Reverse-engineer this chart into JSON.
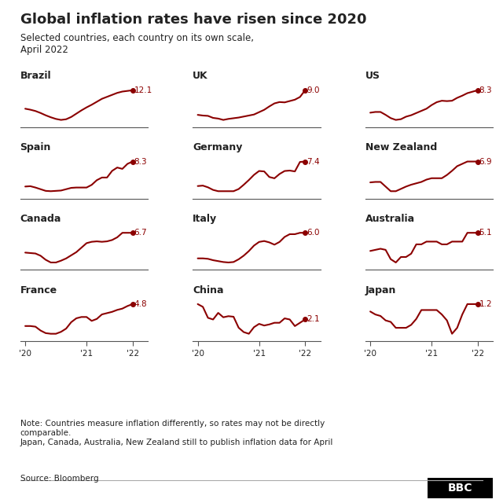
{
  "title": "Global inflation rates have risen since 2020",
  "subtitle": "Selected countries, each country on its own scale,\nApril 2022",
  "note": "Note: Countries measure inflation differently, so rates may not be directly\ncomparable.\nJapan, Canada, Australia, New Zealand still to publish inflation data for April",
  "source": "Source: Bloomberg",
  "line_color": "#8B0000",
  "bg_color": "#ffffff",
  "text_color": "#222222",
  "countries": [
    {
      "name": "Brazil",
      "final_value": "12.1",
      "row": 0,
      "col": 0,
      "data": [
        6.5,
        6.2,
        5.8,
        5.2,
        4.5,
        3.9,
        3.4,
        3.1,
        3.3,
        4.0,
        5.0,
        6.0,
        6.9,
        7.7,
        8.6,
        9.5,
        10.1,
        10.7,
        11.3,
        11.7,
        11.9,
        12.1
      ]
    },
    {
      "name": "UK",
      "final_value": "9.0",
      "row": 0,
      "col": 1,
      "data": [
        1.7,
        1.5,
        1.4,
        0.8,
        0.6,
        0.2,
        0.5,
        0.7,
        0.9,
        1.2,
        1.5,
        1.8,
        2.5,
        3.2,
        4.2,
        5.1,
        5.5,
        5.4,
        5.8,
        6.2,
        7.0,
        9.0
      ]
    },
    {
      "name": "US",
      "final_value": "8.3",
      "row": 0,
      "col": 2,
      "data": [
        2.1,
        2.3,
        2.3,
        1.5,
        0.6,
        0.1,
        0.3,
        1.0,
        1.4,
        2.0,
        2.6,
        3.2,
        4.2,
        5.0,
        5.4,
        5.3,
        5.4,
        6.2,
        6.8,
        7.5,
        7.9,
        8.3
      ]
    },
    {
      "name": "Spain",
      "final_value": "8.3",
      "row": 1,
      "col": 0,
      "data": [
        0.8,
        0.9,
        0.5,
        0.0,
        -0.5,
        -0.6,
        -0.5,
        -0.4,
        0.0,
        0.4,
        0.5,
        0.5,
        0.5,
        1.3,
        2.7,
        3.5,
        3.5,
        5.5,
        6.5,
        6.1,
        7.6,
        8.3
      ]
    },
    {
      "name": "Germany",
      "final_value": "7.4",
      "row": 1,
      "col": 1,
      "data": [
        1.7,
        1.8,
        1.4,
        0.8,
        0.5,
        0.5,
        0.5,
        0.5,
        1.0,
        2.0,
        3.1,
        4.3,
        5.2,
        5.1,
        3.8,
        3.5,
        4.5,
        5.2,
        5.3,
        5.1,
        7.3,
        7.4
      ]
    },
    {
      "name": "New Zealand",
      "final_value": "6.9",
      "row": 1,
      "col": 2,
      "data": [
        2.4,
        2.5,
        2.5,
        1.5,
        0.5,
        0.5,
        1.0,
        1.5,
        1.9,
        2.2,
        2.5,
        3.0,
        3.3,
        3.3,
        3.3,
        4.0,
        4.9,
        5.9,
        6.4,
        6.9,
        6.9,
        6.9
      ]
    },
    {
      "name": "Canada",
      "final_value": "6.7",
      "row": 2,
      "col": 0,
      "data": [
        2.3,
        2.2,
        2.1,
        1.6,
        0.7,
        0.1,
        0.1,
        0.5,
        1.0,
        1.7,
        2.4,
        3.4,
        4.4,
        4.7,
        4.8,
        4.7,
        4.8,
        5.1,
        5.7,
        6.7,
        6.7,
        6.7
      ]
    },
    {
      "name": "Italy",
      "final_value": "6.0",
      "row": 2,
      "col": 1,
      "data": [
        0.4,
        0.4,
        0.3,
        0.0,
        -0.2,
        -0.4,
        -0.5,
        -0.4,
        0.2,
        1.0,
        2.0,
        3.2,
        4.0,
        4.2,
        3.9,
        3.4,
        4.0,
        5.1,
        5.7,
        5.7,
        6.0,
        6.0
      ]
    },
    {
      "name": "Australia",
      "final_value": "5.1",
      "row": 2,
      "col": 2,
      "data": [
        1.8,
        2.0,
        2.2,
        2.0,
        0.3,
        -0.3,
        0.7,
        0.7,
        1.3,
        3.0,
        3.0,
        3.5,
        3.5,
        3.5,
        3.0,
        3.0,
        3.5,
        3.5,
        3.5,
        5.1,
        5.1,
        5.1
      ]
    },
    {
      "name": "France",
      "final_value": "4.8",
      "row": 3,
      "col": 0,
      "data": [
        1.4,
        1.4,
        1.3,
        0.7,
        0.3,
        0.2,
        0.2,
        0.5,
        1.0,
        2.0,
        2.6,
        2.8,
        2.8,
        2.2,
        2.5,
        3.2,
        3.4,
        3.6,
        3.9,
        4.1,
        4.5,
        4.8
      ]
    },
    {
      "name": "China",
      "final_value": "2.1",
      "row": 3,
      "col": 1,
      "data": [
        4.9,
        4.4,
        2.4,
        2.1,
        3.3,
        2.5,
        2.7,
        2.6,
        0.6,
        -0.2,
        -0.5,
        0.7,
        1.3,
        1.0,
        1.2,
        1.5,
        1.5,
        2.3,
        2.1,
        0.9,
        1.5,
        2.1
      ]
    },
    {
      "name": "Japan",
      "final_value": "1.2",
      "row": 3,
      "col": 2,
      "data": [
        0.7,
        0.5,
        0.4,
        0.1,
        0.0,
        -0.4,
        -0.4,
        -0.4,
        -0.2,
        0.2,
        0.8,
        0.8,
        0.8,
        0.8,
        0.5,
        0.1,
        -0.8,
        -0.4,
        0.5,
        1.2,
        1.2,
        1.2
      ]
    }
  ],
  "x_ticks": [
    "'20",
    "'21",
    "'22"
  ],
  "x_tick_positions": [
    0,
    12,
    21
  ]
}
